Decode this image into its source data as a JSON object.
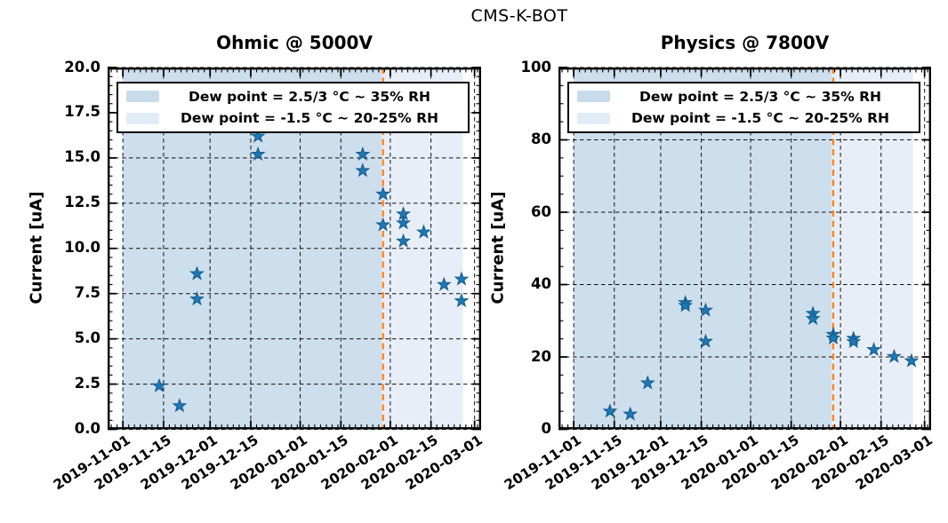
{
  "suptitle": "CMS-K-BOT",
  "colors": {
    "marker": "#1f77b4",
    "marker_edge": "#155d8c",
    "band_dark": "#cddeed",
    "band_light": "#e7eef7",
    "vline": "#ff7f0e",
    "grid": "#111111",
    "spine": "#000000"
  },
  "legend": {
    "entries": [
      {
        "label": "Dew point = 2.5/3 °C ~ 35% RH",
        "swatch": "#c8dbeb"
      },
      {
        "label": "Dew point = -1.5 °C ~ 20-25% RH",
        "swatch": "#e2ecf6"
      }
    ]
  },
  "chart_data": [
    {
      "type": "scatter",
      "title": "Ohmic @ 5000V",
      "ylabel": "Current [uA]",
      "ylim": [
        0,
        20
      ],
      "y_ticks": {
        "values": [
          0,
          2.5,
          5,
          7.5,
          10,
          12.5,
          15,
          17.5,
          20
        ],
        "labels": [
          "0.0",
          "2.5",
          "5.0",
          "7.5",
          "10.0",
          "12.5",
          "15.0",
          "17.5",
          "20.0"
        ]
      },
      "y_minor_step": 0.5,
      "x_range": {
        "start": "2019-10-26T18:00:00Z",
        "end": "2020-03-03T06:00:00Z"
      },
      "x_ticks": [
        "2019-11-01",
        "2019-11-15",
        "2019-12-01",
        "2019-12-15",
        "2020-01-01",
        "2020-01-15",
        "2020-02-01",
        "2020-02-15",
        "2020-03-01"
      ],
      "x_minor_step_days": 2,
      "bands": [
        {
          "from": "2019-11-01",
          "to": "2020-01-29",
          "color": "#cddeed",
          "label": "Dew point = 2.5/3 °C ~ 35% RH"
        },
        {
          "from": "2020-01-29",
          "to": "2020-02-26",
          "color": "#e7eef7",
          "label": "Dew point = -1.5 °C ~ 20-25% RH"
        }
      ],
      "vline_date": "2020-01-29",
      "points": [
        [
          "2019-11-13",
          2.4
        ],
        [
          "2019-11-20",
          1.3
        ],
        [
          "2019-11-26",
          8.6
        ],
        [
          "2019-11-26",
          7.2
        ],
        [
          "2019-12-17",
          16.2
        ],
        [
          "2019-12-17",
          15.2
        ],
        [
          "2020-01-22",
          15.2
        ],
        [
          "2020-01-22",
          14.3
        ],
        [
          "2020-01-29",
          13.0
        ],
        [
          "2020-01-29",
          11.3
        ],
        [
          "2020-02-05",
          11.9
        ],
        [
          "2020-02-05",
          11.4
        ],
        [
          "2020-02-05",
          10.4
        ],
        [
          "2020-02-12",
          10.9
        ],
        [
          "2020-02-19",
          8.0
        ],
        [
          "2020-02-25",
          8.3
        ],
        [
          "2020-02-25",
          7.1
        ]
      ]
    },
    {
      "type": "scatter",
      "title": "Physics @ 7800V",
      "ylabel": "Current [uA]",
      "ylim": [
        0,
        100
      ],
      "y_ticks": {
        "values": [
          0,
          20,
          40,
          60,
          80,
          100
        ],
        "labels": [
          "0",
          "20",
          "40",
          "60",
          "80",
          "100"
        ]
      },
      "y_minor_step": 5,
      "x_range": {
        "start": "2019-10-26T18:00:00Z",
        "end": "2020-03-03T06:00:00Z"
      },
      "x_ticks": [
        "2019-11-01",
        "2019-11-15",
        "2019-12-01",
        "2019-12-15",
        "2020-01-01",
        "2020-01-15",
        "2020-02-01",
        "2020-02-15",
        "2020-03-01"
      ],
      "x_minor_step_days": 2,
      "bands": [
        {
          "from": "2019-11-01",
          "to": "2020-01-29",
          "color": "#cddeed",
          "label": "Dew point = 2.5/3 °C ~ 35% RH"
        },
        {
          "from": "2020-01-29",
          "to": "2020-02-26",
          "color": "#e7eef7",
          "label": "Dew point = -1.5 °C ~ 20-25% RH"
        }
      ],
      "vline_date": "2020-01-29",
      "points": [
        [
          "2019-11-13",
          5.0
        ],
        [
          "2019-11-20",
          4.2
        ],
        [
          "2019-11-26",
          12.8
        ],
        [
          "2019-12-09",
          35.0
        ],
        [
          "2019-12-09",
          34.2
        ],
        [
          "2019-12-16",
          32.9
        ],
        [
          "2019-12-16",
          24.3
        ],
        [
          "2020-01-22",
          32.0
        ],
        [
          "2020-01-22",
          30.6
        ],
        [
          "2020-01-29",
          26.2
        ],
        [
          "2020-01-29",
          25.2
        ],
        [
          "2020-02-05",
          25.1
        ],
        [
          "2020-02-05",
          24.2
        ],
        [
          "2020-02-12",
          22.0
        ],
        [
          "2020-02-19",
          20.1
        ],
        [
          "2020-02-25",
          18.9
        ]
      ]
    }
  ]
}
